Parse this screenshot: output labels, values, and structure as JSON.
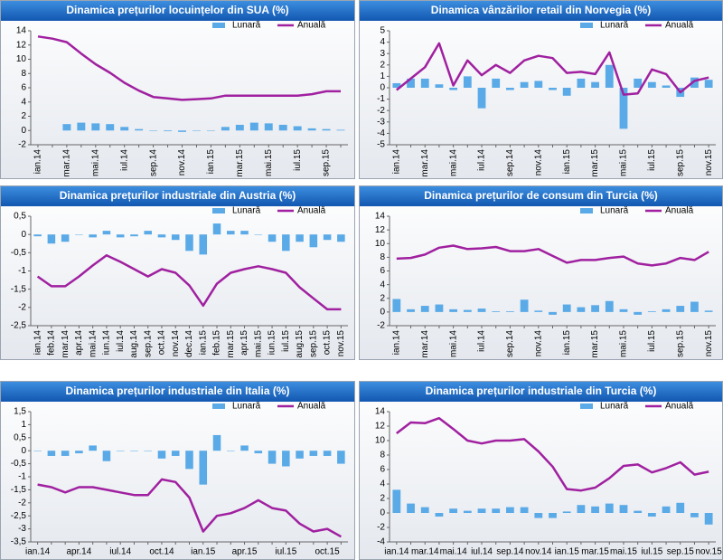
{
  "chart_data": [
    {
      "type": "bar_line",
      "title": "Dinamica prețurilor locuințelor din SUA (%)",
      "categories": [
        "ian.14",
        null,
        "mar.14",
        null,
        "mai.14",
        null,
        "iul.14",
        null,
        "sep.14",
        null,
        "nov.14",
        null,
        "ian.15",
        null,
        "mar.15",
        null,
        "mai.15",
        null,
        "iul.15",
        null,
        "sep.15",
        null
      ],
      "series": [
        {
          "name": "Lunară",
          "color": "#5aaae8",
          "kind": "bar",
          "values": [
            null,
            null,
            0.9,
            1.1,
            1.0,
            0.9,
            0.5,
            0.2,
            0.0,
            -0.1,
            -0.2,
            0.0,
            0.0,
            0.5,
            0.8,
            1.1,
            1.0,
            0.8,
            0.6,
            0.3,
            0.2,
            0.1
          ]
        },
        {
          "name": "Anuală",
          "color": "#a020a0",
          "kind": "line",
          "values": [
            13.2,
            12.9,
            12.4,
            10.8,
            9.3,
            8.1,
            6.7,
            5.6,
            4.7,
            4.5,
            4.3,
            4.4,
            4.5,
            4.9,
            4.9,
            4.9,
            4.9,
            4.9,
            4.9,
            5.1,
            5.5,
            5.5
          ]
        }
      ],
      "ylim": [
        -2,
        14
      ],
      "yticks": [
        -2,
        0,
        2,
        4,
        6,
        8,
        10,
        12,
        14
      ],
      "legend": "upper right"
    },
    {
      "type": "bar_line",
      "title": "Dinamica vânzărilor retail din Norvegia (%)",
      "categories": [
        "ian.14",
        null,
        "mar.14",
        null,
        "mai.14",
        null,
        "iul.14",
        null,
        "sep.14",
        null,
        "nov.14",
        null,
        "ian.15",
        null,
        "mar.15",
        null,
        "mai.15",
        null,
        "iul.15",
        null,
        "sep.15",
        null,
        "nov.15"
      ],
      "series": [
        {
          "name": "Lunară",
          "color": "#5aaae8",
          "kind": "bar",
          "values": [
            0.4,
            0.8,
            0.8,
            0.3,
            -0.2,
            1.0,
            -1.8,
            0.8,
            -0.2,
            0.5,
            0.6,
            -0.2,
            -0.7,
            0.8,
            0.5,
            2.0,
            -3.6,
            0.8,
            0.5,
            0.2,
            -0.8,
            0.9,
            0.7
          ]
        },
        {
          "name": "Anuală",
          "color": "#a020a0",
          "kind": "line",
          "values": [
            -0.2,
            0.8,
            1.8,
            3.9,
            0.2,
            2.4,
            1.1,
            2.0,
            1.3,
            2.4,
            2.8,
            2.6,
            1.3,
            1.4,
            1.2,
            3.1,
            -0.6,
            -0.5,
            1.6,
            1.2,
            -0.4,
            0.6,
            0.9
          ]
        }
      ],
      "ylim": [
        -5,
        5
      ],
      "yticks": [
        -5,
        -4,
        -3,
        -2,
        -1,
        0,
        1,
        2,
        3,
        4,
        5
      ],
      "legend": "upper right"
    },
    {
      "type": "bar_line",
      "title": "Dinamica prețurilor industriale din Austria (%)",
      "categories": [
        "ian.14",
        "feb.14",
        "mar.14",
        "apr.14",
        "mai.14",
        "iun.14",
        "iul.14",
        "aug.14",
        "sep.14",
        "oct.14",
        "nov.14",
        "dec.14",
        "ian.15",
        "feb.15",
        "mar.15",
        "apr.15",
        "mai.15",
        "iun.15",
        "iul.15",
        "aug.15",
        "sep.15",
        "oct.15",
        "nov.15"
      ],
      "series": [
        {
          "name": "Lunară",
          "color": "#5aaae8",
          "kind": "bar",
          "values": [
            -0.05,
            -0.25,
            -0.2,
            0,
            -0.08,
            0.1,
            -0.08,
            -0.05,
            0.1,
            -0.08,
            -0.15,
            -0.45,
            -0.55,
            0.3,
            0.1,
            0.1,
            0,
            -0.2,
            -0.45,
            -0.2,
            -0.35,
            -0.15,
            -0.2
          ]
        },
        {
          "name": "Anuală",
          "color": "#a020a0",
          "kind": "line",
          "values": [
            -1.15,
            -1.42,
            -1.42,
            -1.15,
            -0.85,
            -0.57,
            -0.75,
            -0.95,
            -1.15,
            -0.95,
            -1.05,
            -1.4,
            -1.95,
            -1.35,
            -1.05,
            -0.95,
            -0.87,
            -0.95,
            -1.05,
            -1.45,
            -1.75,
            -2.05,
            -2.05
          ]
        }
      ],
      "ylim": [
        -2.5,
        0.5
      ],
      "yticks": [
        {
          "value": -2.5,
          "label": "-2,5"
        },
        -2,
        {
          "value": -1.5,
          "label": "-1,5"
        },
        -1,
        {
          "value": -0.5,
          "label": "-0,5"
        },
        0,
        {
          "value": 0.5,
          "label": "0,5"
        }
      ],
      "legend": "upper right"
    },
    {
      "type": "bar_line",
      "title": "Dinamica prețurilor de consum din Turcia (%)",
      "categories": [
        "ian.14",
        null,
        "mar.14",
        null,
        "mai.14",
        null,
        "iul.14",
        null,
        "sep.14",
        null,
        "nov.14",
        null,
        "ian.15",
        null,
        "mar.15",
        null,
        "mai.15",
        null,
        "iul.15",
        null,
        "sep.15",
        null,
        "nov.15"
      ],
      "series": [
        {
          "name": "Lunară",
          "color": "#5aaae8",
          "kind": "bar",
          "values": [
            1.9,
            0.4,
            0.9,
            1.1,
            0.4,
            0.3,
            0.5,
            0.1,
            0.1,
            1.8,
            0.2,
            -0.4,
            1.1,
            0.7,
            1.0,
            1.6,
            0.4,
            -0.4,
            0.1,
            0.4,
            0.9,
            1.5,
            0.2
          ]
        },
        {
          "name": "Anuală",
          "color": "#a020a0",
          "kind": "line",
          "values": [
            7.8,
            7.9,
            8.4,
            9.4,
            9.7,
            9.2,
            9.3,
            9.5,
            8.9,
            8.9,
            9.2,
            8.2,
            7.2,
            7.6,
            7.6,
            7.9,
            8.1,
            7.1,
            6.8,
            7.1,
            7.9,
            7.6,
            8.8
          ]
        }
      ],
      "ylim": [
        -2,
        14
      ],
      "yticks": [
        -2,
        0,
        2,
        4,
        6,
        8,
        10,
        12,
        14
      ],
      "legend": "upper right"
    },
    {
      "type": "bar_line",
      "title": "Dinamica prețurilor industriale din Italia (%)",
      "categories": [
        "ian.14",
        null,
        null,
        "apr.14",
        null,
        null,
        "iul.14",
        null,
        null,
        "oct.14",
        null,
        null,
        "ian.15",
        null,
        null,
        "apr.15",
        null,
        null,
        "iul.15",
        null,
        null,
        "oct.15",
        null
      ],
      "series": [
        {
          "name": "Lunară",
          "color": "#5aaae8",
          "kind": "bar",
          "values": [
            0,
            -0.2,
            -0.2,
            -0.1,
            0.2,
            -0.4,
            0,
            0,
            0,
            -0.3,
            -0.2,
            -0.7,
            -1.3,
            0.6,
            0,
            0.2,
            -0.1,
            -0.5,
            -0.6,
            -0.3,
            -0.2,
            -0.2,
            -0.5
          ]
        },
        {
          "name": "Anuală",
          "color": "#a020a0",
          "kind": "line",
          "values": [
            -1.3,
            -1.4,
            -1.6,
            -1.4,
            -1.4,
            -1.5,
            -1.6,
            -1.7,
            -1.7,
            -1.1,
            -1.2,
            -1.8,
            -3.1,
            -2.5,
            -2.4,
            -2.2,
            -1.9,
            -2.2,
            -2.3,
            -2.8,
            -3.1,
            -3.0,
            -3.3
          ]
        }
      ],
      "ylim": [
        -3.5,
        1.5
      ],
      "yticks": [
        {
          "value": -3.5,
          "label": "-3,5"
        },
        -3,
        {
          "value": -2.5,
          "label": "-2,5"
        },
        -2,
        {
          "value": -1.5,
          "label": "-1,5"
        },
        -1,
        {
          "value": -0.5,
          "label": "-0,5"
        },
        0,
        {
          "value": 0.5,
          "label": "0,5"
        },
        1,
        {
          "value": 1.5,
          "label": "1,5"
        }
      ],
      "legend": "upper right"
    },
    {
      "type": "bar_line",
      "title": "Dinamica prețurilor industriale din Turcia (%)",
      "categories": [
        "ian.14",
        null,
        "mar.14",
        null,
        "mai.14",
        null,
        "iul.14",
        null,
        "sep.14",
        null,
        "nov.14",
        null,
        "ian.15",
        null,
        "mar.15",
        null,
        "mai.15",
        null,
        "iul.15",
        null,
        "sep.15",
        null,
        "nov.15"
      ],
      "series": [
        {
          "name": "Lunară",
          "color": "#5aaae8",
          "kind": "bar",
          "values": [
            3.2,
            1.3,
            0.8,
            -0.5,
            0.6,
            0.3,
            0.6,
            0.6,
            0.8,
            0.8,
            -0.7,
            -0.7,
            0.2,
            1.1,
            0.9,
            1.3,
            1.1,
            0.3,
            -0.5,
            0.9,
            1.4,
            -0.6,
            -1.6
          ]
        },
        {
          "name": "Anuală",
          "color": "#a020a0",
          "kind": "line",
          "values": [
            11.0,
            12.5,
            12.4,
            13.1,
            11.6,
            10.0,
            9.6,
            10.0,
            10.0,
            10.2,
            8.5,
            6.4,
            3.3,
            3.1,
            3.5,
            4.8,
            6.5,
            6.7,
            5.6,
            6.2,
            7.0,
            5.3,
            5.7
          ]
        }
      ],
      "ylim": [
        -4,
        14
      ],
      "yticks": [
        -4,
        -2,
        0,
        2,
        4,
        6,
        8,
        10,
        12,
        14
      ],
      "legend": "upper right"
    }
  ]
}
